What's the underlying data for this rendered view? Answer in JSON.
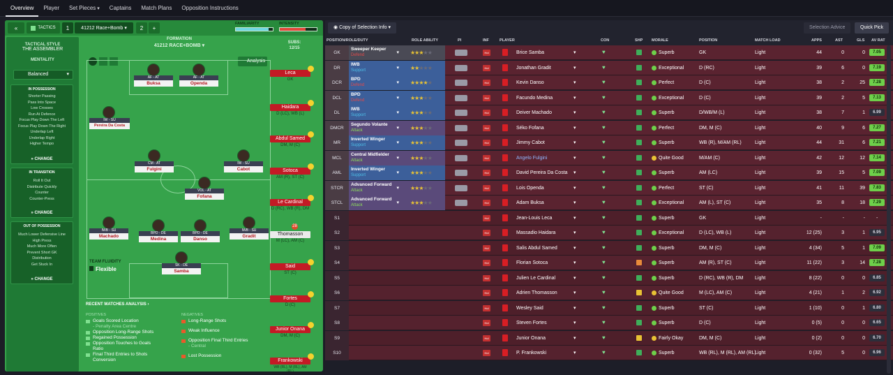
{
  "nav": {
    "items": [
      "Overview",
      "Player",
      "Set Pieces",
      "Captains",
      "Match Plans",
      "Opposition Instructions"
    ],
    "set_pieces_chevron": "▾"
  },
  "tactic": {
    "collapse_label": "«",
    "tactics_label": "TACTICS",
    "slot1": "1",
    "name": "41212 Race+Bomb",
    "slot2": "2",
    "add": "+",
    "familiarity_label": "FAMILIARITY",
    "familiarity_pct": 88,
    "intensity_label": "INTENSITY",
    "intensity_pct": 70,
    "style_label": "TACTICAL STYLE",
    "style": "THE ASSEMBLER",
    "mentality_label": "MENTALITY",
    "mentality": "Balanced",
    "in_possession": {
      "title": "IN POSSESSION",
      "items": [
        "Shorter Passing",
        "Pass Into Space",
        "Low Crosses",
        "Run At Defence",
        "Focus Play Down The Left",
        "Focus Play Down The Right",
        "Underlap Left",
        "Underlap Right",
        "Higher Tempo"
      ],
      "change": "CHANGE"
    },
    "in_transition": {
      "title": "IN TRANSITION",
      "items": [
        "Roll It Out",
        "Distribute Quickly",
        "Counter",
        "Counter-Press"
      ],
      "change": "CHANGE"
    },
    "out_possession": {
      "title": "OUT OF POSSESSION",
      "items": [
        "Much Lower Defensive Line",
        "High Press",
        "Much More Often",
        "Prevent Short GK",
        "Distribution",
        "Get Stuck In"
      ],
      "change": "CHANGE"
    },
    "formation_label": "FORMATION",
    "formation": "41212 RACE+BOMB",
    "subs_label": "SUBS:",
    "subs": "12/15",
    "analysis_btn": "Analysis",
    "fluidity_label": "TEAM FLUIDITY",
    "fluidity": "Flexible"
  },
  "pitch_players": [
    {
      "role": "AF - AT",
      "name": "Buksa"
    },
    {
      "role": "AF - AT",
      "name": "Openda"
    },
    {
      "role": "IW - SU",
      "name": "Pereira Da Costa"
    },
    {
      "role": "CM - AT",
      "name": "Fulgini"
    },
    {
      "role": "IW - SU",
      "name": "Cabot"
    },
    {
      "role": "VOL - AT",
      "name": "Fofana"
    },
    {
      "role": "IWB - SU",
      "name": "Machado"
    },
    {
      "role": "BPD - DE",
      "name": "Medina"
    },
    {
      "role": "BPD - DE",
      "name": "Danso"
    },
    {
      "role": "IWB - SU",
      "name": "Gradit"
    },
    {
      "role": "SK - DE",
      "name": "Samba"
    }
  ],
  "bench": [
    {
      "name": "Leca",
      "pos": "GK"
    },
    {
      "name": "Haidara",
      "pos": "D (LC), WB (L)"
    },
    {
      "name": "Abdul Samed",
      "pos": "DM, M (C)"
    },
    {
      "name": "Sotoca",
      "pos": "AM (R), ST (C)"
    },
    {
      "name": "Le Cardinal",
      "pos": "D (RC), WB (R), DM"
    },
    {
      "name": "Thomasson",
      "pos": "M (LC), AM (C)",
      "badge": "28"
    },
    {
      "name": "Said",
      "pos": "ST (C)"
    },
    {
      "name": "Fortes",
      "pos": "D (C)"
    },
    {
      "name": "Junior Onana",
      "pos": "DM, M (C)"
    },
    {
      "name": "Frankowski",
      "pos": "WB (RL), M (RL), AM (RL)"
    }
  ],
  "analysis": {
    "title": "RECENT MATCHES ANALYSIS",
    "positives_label": "POSITIVES",
    "positives": [
      "Goals Scored Location",
      "- Penalty Area Centre",
      "Opposition Long-Range Shots",
      "Regained Possession",
      "Opposition Touches to Goals",
      "Ratio",
      "Final Third Entries to Shots",
      "Conversion"
    ],
    "negatives_label": "NEGATIVES",
    "negatives": [
      "Long-Range Shots",
      "Weak Influence",
      "Opposition Final Third Entries",
      "- Central",
      "Lost Possession"
    ]
  },
  "selection": {
    "copy_btn": "Copy of Selection Info",
    "advice_btn": "Selection Advice",
    "quick_btn": "Quick Pick",
    "headers": [
      "POSITION/ROLE/DUTY",
      "ROLE ABILITY",
      "PI",
      "INF",
      "PLAYER",
      "CON",
      "SHP",
      "MORALE",
      "POSITION",
      "MATCH LOAD",
      "APPS",
      "AST",
      "GLS",
      "AV RAT"
    ],
    "rows": [
      {
        "pos": "GK",
        "role": "Sweeper Keeper",
        "duty": "Defend",
        "stars": 3,
        "player": "Brice Samba",
        "morale": "Superb",
        "position": "GK",
        "load": "Light",
        "apps": "44",
        "ast": "0",
        "gls": "0",
        "rat": "7.05"
      },
      {
        "pos": "DR",
        "role": "IWB",
        "duty": "Support",
        "stars": 2,
        "player": "Jonathan Gradit",
        "morale": "Exceptional",
        "position": "D (RC)",
        "load": "Light",
        "apps": "39",
        "ast": "6",
        "gls": "0",
        "rat": "7.19"
      },
      {
        "pos": "DCR",
        "role": "BPD",
        "duty": "Defend",
        "stars": 4,
        "player": "Kevin Danso",
        "morale": "Perfect",
        "position": "D (C)",
        "load": "Light",
        "apps": "38",
        "ast": "2",
        "gls": "25",
        "rat": "7.28"
      },
      {
        "pos": "DCL",
        "role": "BPD",
        "duty": "Defend",
        "stars": 3,
        "player": "Facundo Medina",
        "morale": "Exceptional",
        "position": "D (C)",
        "load": "Light",
        "apps": "39",
        "ast": "2",
        "gls": "5",
        "rat": "7.13"
      },
      {
        "pos": "DL",
        "role": "IWB",
        "duty": "Support",
        "stars": 3,
        "player": "Deiver Machado",
        "morale": "Superb",
        "position": "D/WB/M (L)",
        "load": "Light",
        "apps": "38",
        "ast": "7",
        "gls": "1",
        "rat": "6.99"
      },
      {
        "pos": "DMCR",
        "role": "Segundo Volante",
        "duty": "Attack",
        "stars": 3,
        "player": "Séko Fofana",
        "morale": "Perfect",
        "position": "DM, M (C)",
        "load": "Light",
        "apps": "40",
        "ast": "9",
        "gls": "6",
        "rat": "7.27"
      },
      {
        "pos": "MR",
        "role": "Inverted Winger",
        "duty": "Support",
        "stars": 3,
        "player": "Jimmy Cabot",
        "morale": "Superb",
        "position": "WB (R), M/AM (RL)",
        "load": "Light",
        "apps": "44",
        "ast": "31",
        "gls": "6",
        "rat": "7.21"
      },
      {
        "pos": "MCL",
        "role": "Central Midfielder",
        "duty": "Attack",
        "stars": 3,
        "player": "Angelo Fulgini",
        "morale": "Quite Good",
        "position": "M/AM (C)",
        "load": "Light",
        "apps": "42",
        "ast": "12",
        "gls": "12",
        "rat": "7.14"
      },
      {
        "pos": "AML",
        "role": "Inverted Winger",
        "duty": "Support",
        "stars": 3,
        "player": "David Pereira Da Costa",
        "morale": "Superb",
        "position": "AM (LC)",
        "load": "Light",
        "apps": "39",
        "ast": "15",
        "gls": "5",
        "rat": "7.09"
      },
      {
        "pos": "STCR",
        "role": "Advanced Forward",
        "duty": "Attack",
        "stars": 3,
        "player": "Lois Openda",
        "morale": "Perfect",
        "position": "ST (C)",
        "load": "Light",
        "apps": "41",
        "ast": "11",
        "gls": "39",
        "rat": "7.83"
      },
      {
        "pos": "STCL",
        "role": "Advanced Forward",
        "duty": "Attack",
        "stars": 3,
        "player": "Adam Buksa",
        "morale": "Exceptional",
        "position": "AM (L), ST (C)",
        "load": "Light",
        "apps": "35",
        "ast": "8",
        "gls": "18",
        "rat": "7.29"
      },
      {
        "pos": "S1",
        "role": "",
        "duty": "",
        "stars": 0,
        "player": "Jean-Louis Leca",
        "morale": "Superb",
        "position": "GK",
        "load": "Light",
        "apps": "-",
        "ast": "-",
        "gls": "-",
        "rat": "-"
      },
      {
        "pos": "S2",
        "role": "",
        "duty": "",
        "stars": 0,
        "player": "Massadio Haidara",
        "morale": "Exceptional",
        "position": "D (LC), WB (L)",
        "load": "Light",
        "apps": "12 (25)",
        "ast": "3",
        "gls": "1",
        "rat": "6.95"
      },
      {
        "pos": "S3",
        "role": "",
        "duty": "",
        "stars": 0,
        "player": "Salis Abdul Samed",
        "morale": "Superb",
        "position": "DM, M (C)",
        "load": "Light",
        "apps": "4 (34)",
        "ast": "5",
        "gls": "1",
        "rat": "7.09"
      },
      {
        "pos": "S4",
        "role": "",
        "duty": "",
        "stars": 0,
        "player": "Florian Sotoca",
        "morale": "Superb",
        "position": "AM (R), ST (C)",
        "load": "Light",
        "apps": "11 (22)",
        "ast": "3",
        "gls": "14",
        "rat": "7.28"
      },
      {
        "pos": "S5",
        "role": "",
        "duty": "",
        "stars": 0,
        "player": "Julien Le Cardinal",
        "morale": "Superb",
        "position": "D (RC), WB (R), DM",
        "load": "Light",
        "apps": "8 (22)",
        "ast": "0",
        "gls": "0",
        "rat": "6.85"
      },
      {
        "pos": "S6",
        "role": "",
        "duty": "",
        "stars": 0,
        "player": "Adrien Thomasson",
        "morale": "Quite Good",
        "position": "M (LC), AM (C)",
        "load": "Light",
        "apps": "4 (21)",
        "ast": "1",
        "gls": "2",
        "rat": "6.92"
      },
      {
        "pos": "S7",
        "role": "",
        "duty": "",
        "stars": 0,
        "player": "Wesley Said",
        "morale": "Superb",
        "position": "ST (C)",
        "load": "Light",
        "apps": "1 (10)",
        "ast": "0",
        "gls": "1",
        "rat": "6.80"
      },
      {
        "pos": "S8",
        "role": "",
        "duty": "",
        "stars": 0,
        "player": "Steven Fortes",
        "morale": "Superb",
        "position": "D (C)",
        "load": "Light",
        "apps": "0 (5)",
        "ast": "0",
        "gls": "0",
        "rat": "6.65"
      },
      {
        "pos": "S9",
        "role": "",
        "duty": "",
        "stars": 0,
        "player": "Junior Onana",
        "morale": "Fairly Okay",
        "position": "DM, M (C)",
        "load": "Light",
        "apps": "0 (2)",
        "ast": "0",
        "gls": "0",
        "rat": "6.70"
      },
      {
        "pos": "S10",
        "role": "",
        "duty": "",
        "stars": 0,
        "player": "P. Frankowski",
        "morale": "Superb",
        "position": "WB (RL), M (RL), AM (RL)",
        "load": "Light",
        "apps": "0 (32)",
        "ast": "5",
        "gls": "0",
        "rat": "6.96"
      }
    ]
  },
  "colors": {
    "pitch": "#36a34b",
    "row_red": "#5a2330",
    "row_def": "#3c5f9a",
    "row_att": "#5a4a7a",
    "rating_green": "#6ed04a"
  }
}
